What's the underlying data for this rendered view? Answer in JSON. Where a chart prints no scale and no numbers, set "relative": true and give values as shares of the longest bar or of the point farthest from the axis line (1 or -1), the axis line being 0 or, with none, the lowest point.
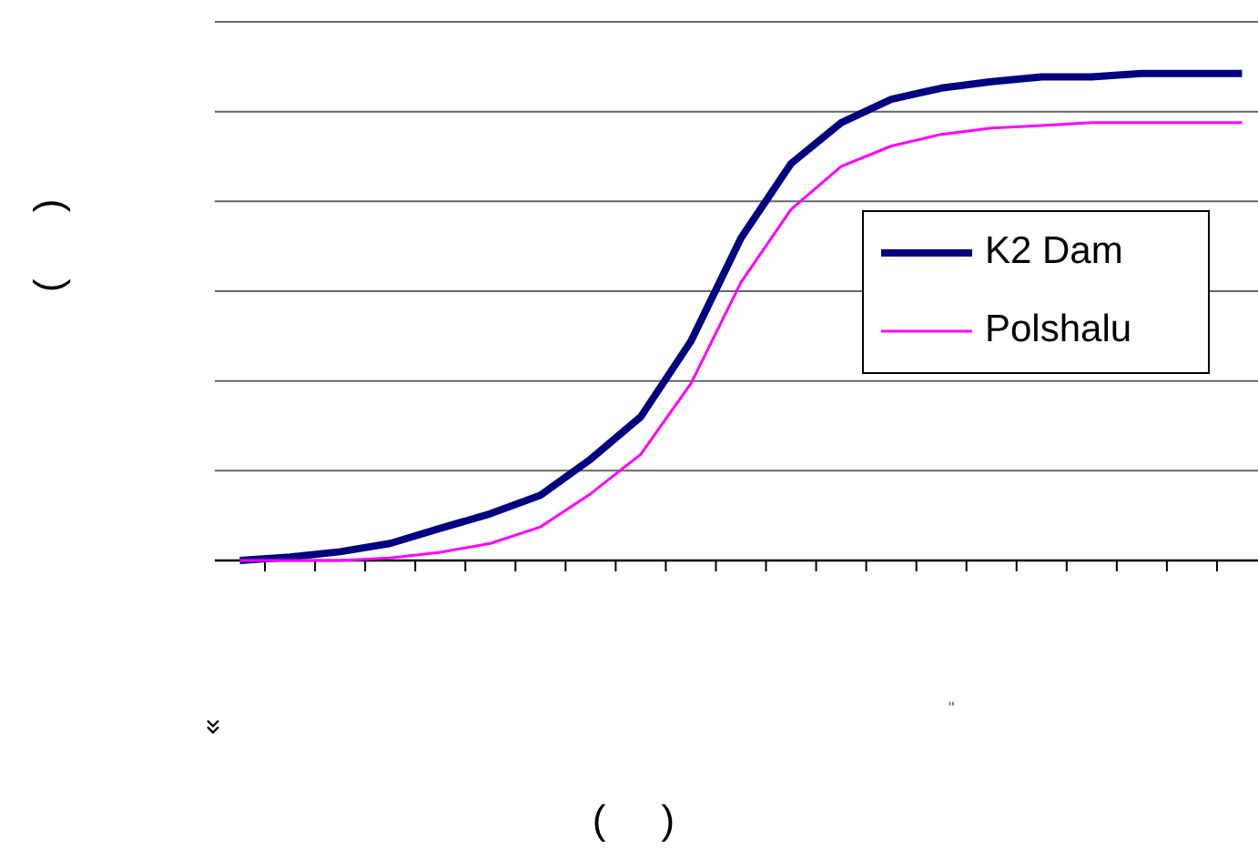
{
  "chart_data": {
    "type": "line",
    "relative": true,
    "ylabel": "(      )",
    "annotations": [
      "\"",
      "(     )"
    ],
    "grid": "y",
    "legend": "right",
    "line_style": "solid",
    "marker": "none",
    "categories": [
      null,
      null,
      null,
      null,
      null,
      null,
      null,
      null,
      null,
      null,
      null,
      null,
      null,
      null,
      null,
      null,
      null,
      null,
      null,
      null,
      null
    ],
    "series": [
      {
        "name": "K2 Dam",
        "color": "#000080",
        "values": [
          0,
          0.007,
          0.018,
          0.035,
          0.066,
          0.096,
          0.134,
          0.208,
          0.295,
          0.45,
          0.662,
          0.815,
          0.899,
          0.947,
          0.97,
          0.983,
          0.993,
          0.993,
          1,
          1,
          1
        ]
      },
      {
        "name": "Polshalu",
        "color": "#ff00ff",
        "values": [
          0,
          0,
          0,
          0.005,
          0.017,
          0.035,
          0.069,
          0.137,
          0.218,
          0.363,
          0.571,
          0.721,
          0.809,
          0.851,
          0.875,
          0.888,
          0.893,
          0.899,
          0.899,
          0.899,
          0.899
        ]
      }
    ]
  }
}
